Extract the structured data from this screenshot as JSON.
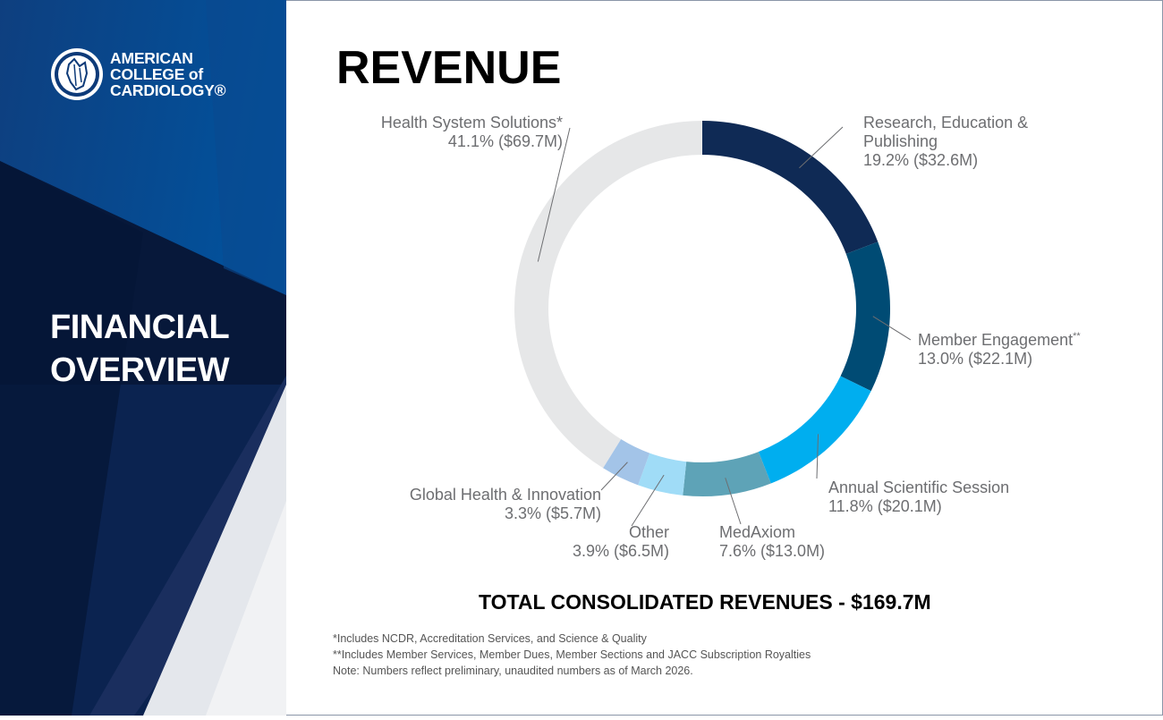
{
  "brand": {
    "logo_text": [
      "AMERICAN",
      "COLLEGE of",
      "CARDIOLOGY®"
    ],
    "side_title": [
      "FINANCIAL",
      "OVERVIEW"
    ]
  },
  "chart_data": {
    "type": "pie",
    "donut": true,
    "title": "REVENUE",
    "start": "top, clockwise",
    "slices": [
      {
        "label": "Research, Education & Publishing",
        "percent": 19.2,
        "value_label": "19.2% ($32.6M)",
        "value_musd": 32.6,
        "color": "#0f2a55"
      },
      {
        "label": "Member Engagement",
        "note_mark": "**",
        "percent": 13.0,
        "value_label": "13.0% ($22.1M)",
        "value_musd": 22.1,
        "color": "#004b74"
      },
      {
        "label": "Annual Scientific Session",
        "percent": 11.8,
        "value_label": "11.8% ($20.1M)",
        "value_musd": 20.1,
        "color": "#00aeef"
      },
      {
        "label": "MedAxiom",
        "percent": 7.6,
        "value_label": "7.6% ($13.0M)",
        "value_musd": 13.0,
        "color": "#5ea3b7"
      },
      {
        "label": "Other",
        "percent": 3.9,
        "value_label": "3.9% ($6.5M)",
        "value_musd": 6.5,
        "color": "#a0dcf7"
      },
      {
        "label": "Global Health & Innovation",
        "percent": 3.3,
        "value_label": "3.3% ($5.7M)",
        "value_musd": 5.7,
        "color": "#a3c4e8"
      },
      {
        "label": "Health System Solutions",
        "note_mark": "*",
        "percent": 41.1,
        "value_label": "41.1% ($69.7M)",
        "value_musd": 69.7,
        "color": "#e6e7e8"
      }
    ],
    "total_label": "TOTAL CONSOLIDATED REVENUES - $169.7M"
  },
  "footnotes": [
    "*Includes NCDR, Accreditation Services, and Science & Quality",
    "**Includes Member Services, Member Dues, Member Sections and JACC Subscription Royalties",
    "Note: Numbers reflect preliminary, unaudited numbers as of March 2026."
  ]
}
